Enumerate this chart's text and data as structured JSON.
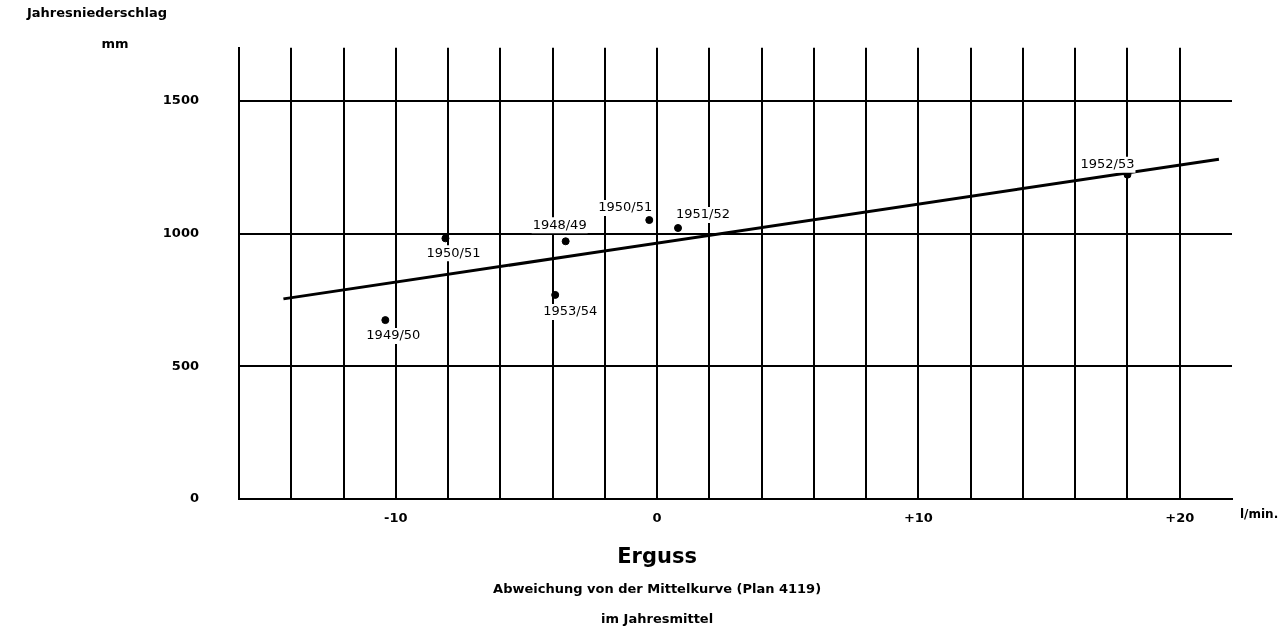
{
  "chart_data": {
    "type": "scatter",
    "xlabel": "Erguss",
    "ylabel": "Jahresniederschlag\nmm",
    "x": [
      -10.4,
      -8.1,
      -3.9,
      -3.5,
      -0.3,
      0.8,
      18.0
    ],
    "series": [
      {
        "color": "#000000",
        "values": [
          674,
          982,
          769,
          971,
          1051,
          1021,
          1222
        ]
      },
      {
        "type": "line",
        "color": "#000000",
        "marker": "none",
        "x": [
          -14.3,
          21.5
        ],
        "values": [
          754,
          1280
        ]
      }
    ],
    "xlim": [
      -16,
      22
    ],
    "xticks": [
      {
        "value": -14,
        "label": null
      },
      {
        "value": -12,
        "label": null
      },
      {
        "value": -10,
        "label": "-10"
      },
      {
        "value": -8,
        "label": null
      },
      {
        "value": -6,
        "label": null
      },
      {
        "value": -4,
        "label": null
      },
      {
        "value": -2,
        "label": null
      },
      0,
      {
        "value": 2,
        "label": null
      },
      {
        "value": 4,
        "label": null
      },
      {
        "value": 6,
        "label": null
      },
      {
        "value": 8,
        "label": null
      },
      {
        "value": 10,
        "label": "+10"
      },
      {
        "value": 12,
        "label": null
      },
      {
        "value": 14,
        "label": null
      },
      {
        "value": 16,
        "label": null
      },
      {
        "value": 18,
        "label": null
      },
      {
        "value": 20,
        "label": "+20"
      }
    ],
    "ylim": [
      0,
      1700
    ],
    "yticks": [
      0,
      500,
      1000,
      1500
    ],
    "grid": true,
    "marker": "circle",
    "annotations": [
      "l/min.",
      "Abweichung von der Mittelkurve (Plan 4119)",
      "im Jahresmittel",
      {
        "text": "1949/50",
        "x": -10.4,
        "y": 674
      },
      {
        "text": "1950/51",
        "x": -8.1,
        "y": 982
      },
      {
        "text": "1953/54",
        "x": -3.9,
        "y": 769
      },
      {
        "text": "1948/49",
        "x": -3.5,
        "y": 971
      },
      {
        "text": "1950/51",
        "x": -0.3,
        "y": 1051
      },
      {
        "text": "1951/52",
        "x": 0.8,
        "y": 1021
      },
      {
        "text": "1952/53",
        "x": 18.0,
        "y": 1222
      }
    ]
  }
}
